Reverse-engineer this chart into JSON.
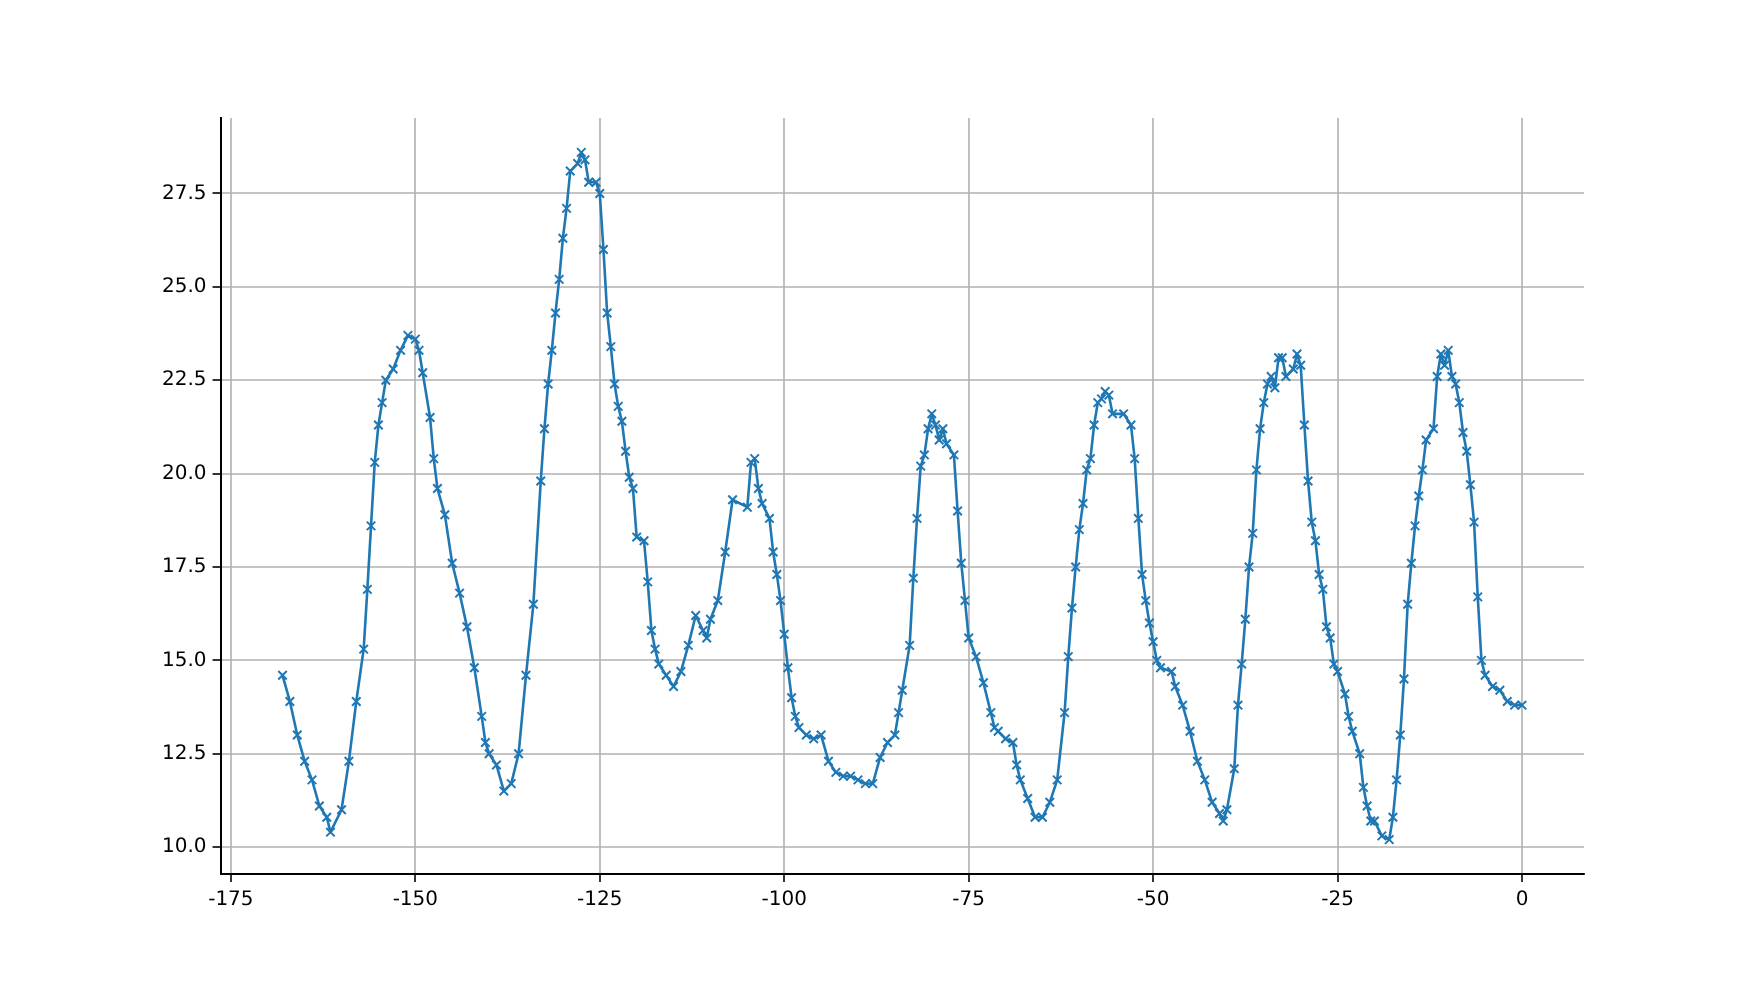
{
  "chart_data": {
    "type": "line",
    "marker": "cross",
    "grid": true,
    "legend": false,
    "xlim": [
      -176.4,
      8.4
    ],
    "ylim": [
      9.28,
      29.52
    ],
    "xticks": [
      -175,
      -150,
      -125,
      -100,
      -75,
      -50,
      -25,
      0
    ],
    "yticks": [
      {
        "value": 10,
        "label": "10.0"
      },
      {
        "value": 12.5,
        "label": "12.5"
      },
      {
        "value": 15,
        "label": "15.0"
      },
      {
        "value": 17.5,
        "label": "17.5"
      },
      {
        "value": 20,
        "label": "20.0"
      },
      {
        "value": 22.5,
        "label": "22.5"
      },
      {
        "value": 25,
        "label": "25.0"
      },
      {
        "value": 27.5,
        "label": "27.5"
      }
    ],
    "series": [
      {
        "color": "#1f77b4",
        "x": [
          -168,
          -167,
          -166,
          -165,
          -164,
          -163,
          -162,
          -161.5,
          -160,
          -159,
          -158,
          -157,
          -156.5,
          -156,
          -155.5,
          -155,
          -154.5,
          -154,
          -153,
          -152,
          -151,
          -150,
          -149.5,
          -149,
          -148,
          -147.5,
          -147,
          -146,
          -145,
          -144,
          -143,
          -142,
          -141,
          -140.5,
          -140,
          -139,
          -138,
          -137,
          -136,
          -135,
          -134,
          -133,
          -132.5,
          -132,
          -131.5,
          -131,
          -130.5,
          -130,
          -129.5,
          -129,
          -128,
          -127.5,
          -127,
          -126.5,
          -125.5,
          -125,
          -124.5,
          -124,
          -123.5,
          -123,
          -122.5,
          -122,
          -121.5,
          -121,
          -120.5,
          -120,
          -119,
          -118.5,
          -118,
          -117.5,
          -117,
          -116,
          -115,
          -114,
          -113,
          -112,
          -111,
          -110.5,
          -110,
          -109,
          -108,
          -107,
          -105,
          -104.5,
          -104,
          -103.5,
          -103,
          -102,
          -101.5,
          -101,
          -100.5,
          -100,
          -99.5,
          -99,
          -98.5,
          -98,
          -97,
          -96,
          -95,
          -94,
          -93,
          -92,
          -91,
          -90,
          -89,
          -88,
          -87,
          -86,
          -85,
          -84.5,
          -84,
          -83,
          -82.5,
          -82,
          -81.5,
          -81,
          -80.5,
          -80,
          -79.5,
          -79,
          -78.5,
          -78,
          -77,
          -76.5,
          -76,
          -75.5,
          -75,
          -74,
          -73,
          -72,
          -71.5,
          -71,
          -70,
          -69,
          -68.5,
          -68,
          -67,
          -66,
          -65,
          -64,
          -63,
          -62,
          -61.5,
          -61,
          -60.5,
          -60,
          -59.5,
          -59,
          -58.5,
          -58,
          -57.5,
          -57,
          -56.5,
          -56,
          -55.5,
          -54,
          -53,
          -52.5,
          -52,
          -51.5,
          -51,
          -50.5,
          -50,
          -49.5,
          -49,
          -47.5,
          -47,
          -46,
          -45,
          -44,
          -43,
          -42,
          -41,
          -40.5,
          -40,
          -39,
          -38.5,
          -38,
          -37.5,
          -37,
          -36.5,
          -36,
          -35.5,
          -35,
          -34.5,
          -34,
          -33.5,
          -33,
          -32.5,
          -32,
          -31,
          -30.5,
          -30,
          -29.5,
          -29,
          -28.5,
          -28,
          -27.5,
          -27,
          -26.5,
          -26,
          -25.5,
          -25,
          -24,
          -23.5,
          -23,
          -22,
          -21.5,
          -21,
          -20.5,
          -20,
          -19,
          -18,
          -17.5,
          -17,
          -16.5,
          -16,
          -15.5,
          -15,
          -14.5,
          -14,
          -13.5,
          -13,
          -12,
          -11.5,
          -11,
          -10.5,
          -10,
          -9.5,
          -9,
          -8.5,
          -8,
          -7.5,
          -7,
          -6.5,
          -6,
          -5.5,
          -5,
          -4,
          -3,
          -2,
          -1,
          0
        ],
        "values": [
          14.6,
          13.9,
          13.0,
          12.3,
          11.8,
          11.1,
          10.8,
          10.4,
          11.0,
          12.3,
          13.9,
          15.3,
          16.9,
          18.6,
          20.3,
          21.3,
          21.9,
          22.5,
          22.8,
          23.3,
          23.7,
          23.6,
          23.3,
          22.7,
          21.5,
          20.4,
          19.6,
          18.9,
          17.6,
          16.8,
          15.9,
          14.8,
          13.5,
          12.8,
          12.5,
          12.2,
          11.5,
          11.7,
          12.5,
          14.6,
          16.5,
          19.8,
          21.2,
          22.4,
          23.3,
          24.3,
          25.2,
          26.3,
          27.1,
          28.1,
          28.3,
          28.6,
          28.4,
          27.8,
          27.8,
          27.5,
          26.0,
          24.3,
          23.4,
          22.4,
          21.8,
          21.4,
          20.6,
          19.9,
          19.6,
          18.3,
          18.2,
          17.1,
          15.8,
          15.3,
          14.9,
          14.6,
          14.3,
          14.7,
          15.4,
          16.2,
          15.8,
          15.6,
          16.1,
          16.6,
          17.9,
          19.3,
          19.1,
          20.3,
          20.4,
          19.6,
          19.2,
          18.8,
          17.9,
          17.3,
          16.6,
          15.7,
          14.8,
          14.0,
          13.5,
          13.2,
          13.0,
          12.9,
          13.0,
          12.3,
          12.0,
          11.9,
          11.9,
          11.8,
          11.7,
          11.7,
          12.4,
          12.8,
          13.0,
          13.6,
          14.2,
          15.4,
          17.2,
          18.8,
          20.2,
          20.5,
          21.2,
          21.6,
          21.3,
          20.9,
          21.2,
          20.8,
          20.5,
          19.0,
          17.6,
          16.6,
          15.6,
          15.1,
          14.4,
          13.6,
          13.2,
          13.1,
          12.9,
          12.8,
          12.2,
          11.8,
          11.3,
          10.8,
          10.8,
          11.2,
          11.8,
          13.6,
          15.1,
          16.4,
          17.5,
          18.5,
          19.2,
          20.1,
          20.4,
          21.3,
          21.9,
          22.0,
          22.2,
          22.1,
          21.6,
          21.6,
          21.3,
          20.4,
          18.8,
          17.3,
          16.6,
          16.0,
          15.5,
          15.0,
          14.8,
          14.7,
          14.3,
          13.8,
          13.1,
          12.3,
          11.8,
          11.2,
          10.9,
          10.7,
          11.0,
          12.1,
          13.8,
          14.9,
          16.1,
          17.5,
          18.4,
          20.1,
          21.2,
          21.9,
          22.4,
          22.6,
          22.3,
          23.1,
          23.1,
          22.6,
          22.8,
          23.2,
          22.9,
          21.3,
          19.8,
          18.7,
          18.2,
          17.3,
          16.9,
          15.9,
          15.6,
          14.9,
          14.7,
          14.1,
          13.5,
          13.1,
          12.5,
          11.6,
          11.1,
          10.7,
          10.7,
          10.3,
          10.2,
          10.8,
          11.8,
          13.0,
          14.5,
          16.5,
          17.6,
          18.6,
          19.4,
          20.1,
          20.9,
          21.2,
          22.6,
          23.2,
          22.9,
          23.3,
          22.6,
          22.4,
          21.9,
          21.1,
          20.6,
          19.7,
          18.7,
          16.7,
          15.0,
          14.6,
          14.3,
          14.2,
          13.9,
          13.8,
          13.8
        ]
      }
    ]
  }
}
